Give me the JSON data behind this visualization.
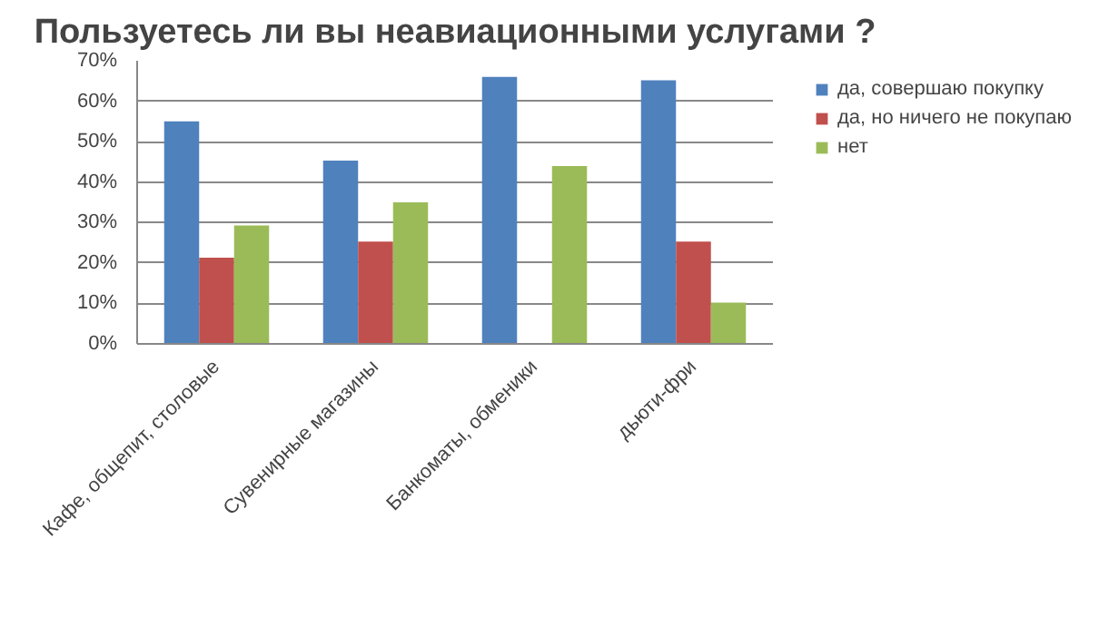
{
  "chart_data": {
    "type": "bar",
    "title": "Пользуетесь ли вы неавиационными услугами ?",
    "categories": [
      "Кафе, общепит, столовые",
      "Сувенирные магазины",
      "Банкоматы, обменики",
      "дьюти-фри"
    ],
    "series": [
      {
        "name": "да, совершаю покупку",
        "color": "#4f81bd",
        "values": [
          55,
          45.3,
          66,
          65.2
        ]
      },
      {
        "name": "да, но ничего не покупаю",
        "color": "#c0504d",
        "values": [
          21.3,
          25.3,
          null,
          25.3
        ]
      },
      {
        "name": "нет",
        "color": "#9bbb59",
        "values": [
          29.3,
          35,
          44,
          10.2
        ]
      }
    ],
    "ylim": [
      0,
      70
    ],
    "yticks": [
      {
        "value": 0,
        "label": "0%"
      },
      {
        "value": 10,
        "label": "10%"
      },
      {
        "value": 20,
        "label": "20%"
      },
      {
        "value": 30,
        "label": "30%"
      },
      {
        "value": 40,
        "label": "40%"
      },
      {
        "value": 50,
        "label": "50%"
      },
      {
        "value": 60,
        "label": "60%"
      },
      {
        "value": 70,
        "label": "70%"
      }
    ],
    "grid": "y",
    "legend": "right"
  }
}
